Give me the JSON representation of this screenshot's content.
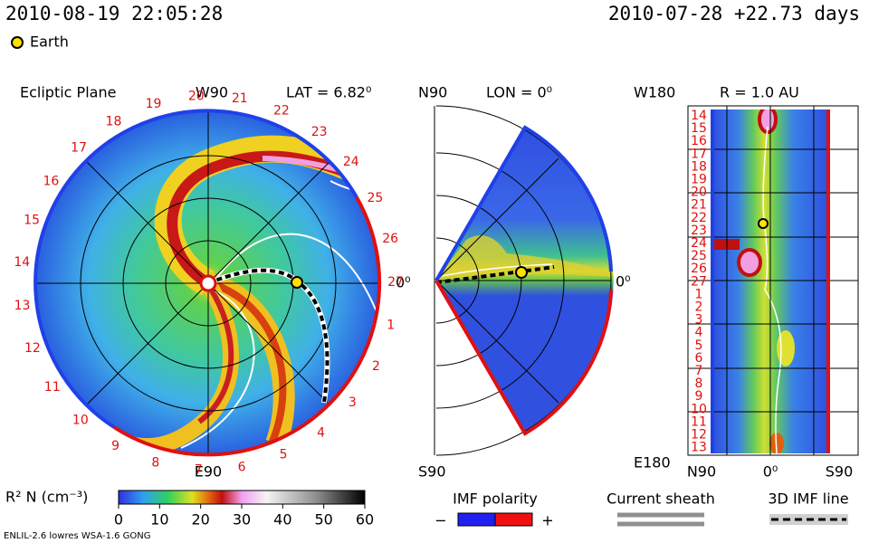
{
  "header": {
    "datetime": "2010-08-19 22:05:28",
    "elapsed": "2010-07-28 +22.73 days",
    "legend": "Earth"
  },
  "ecliptic": {
    "title": "Ecliptic Plane",
    "top": "W90",
    "lat": "LAT = 6.82⁰",
    "right": "0⁰",
    "bottom": "E90",
    "days": [
      1,
      2,
      3,
      4,
      5,
      6,
      7,
      8,
      9,
      10,
      11,
      12,
      13,
      14,
      15,
      16,
      17,
      18,
      19,
      20,
      21,
      22,
      23,
      24,
      25,
      26,
      27
    ]
  },
  "meridional": {
    "top": "N90",
    "lon": "LON = 0⁰",
    "right": "0⁰",
    "bottom": "S90"
  },
  "radial": {
    "top_left": "W180",
    "title": "R = 1.0 AU",
    "bottom_left": "E180",
    "x_labels": [
      "N90",
      "0⁰",
      "S90"
    ],
    "days": [
      14,
      15,
      16,
      17,
      18,
      19,
      20,
      21,
      22,
      23,
      24,
      25,
      26,
      27,
      1,
      2,
      3,
      4,
      5,
      6,
      7,
      8,
      9,
      10,
      11,
      12,
      13
    ]
  },
  "colorbar": {
    "label": "R² N (cm⁻³)",
    "lim": [
      0,
      60
    ],
    "ticks": [
      0,
      10,
      20,
      30,
      40,
      50,
      60
    ]
  },
  "legends": {
    "imf": "IMF polarity",
    "minus": "−",
    "plus": "+",
    "sheath": "Current sheath",
    "imf_line": "3D IMF line"
  },
  "footer": "ENLIL-2.6 lowres WSA-1.6 GONG"
}
